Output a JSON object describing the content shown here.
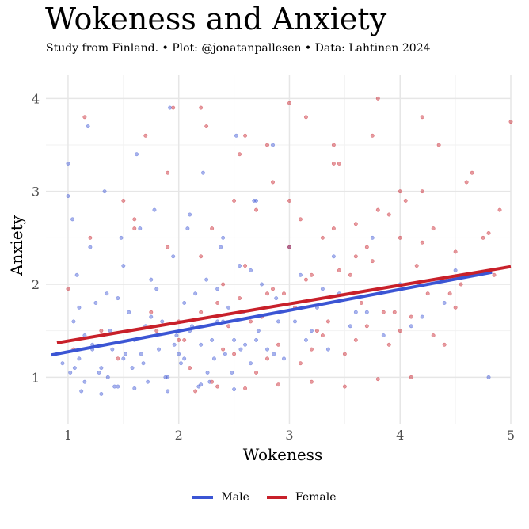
{
  "chart_data": {
    "type": "scatter",
    "title": "Wokeness and Anxiety",
    "subtitle": "Study from Finland. • Plot: @jonatanpallesen • Data: Lahtinen 2024",
    "xlabel": "Wokeness",
    "ylabel": "Anxiety",
    "xlim": [
      0.8,
      5.0
    ],
    "ylim": [
      0.5,
      4.25
    ],
    "xticks": [
      "1",
      "2",
      "3",
      "4",
      "5"
    ],
    "yticks": [
      "1",
      "2",
      "3",
      "4"
    ],
    "grid": true,
    "legend_position": "bottom",
    "series": [
      {
        "name": "Male",
        "color": "#3b55d4",
        "trend": {
          "x": [
            0.85,
            4.83
          ],
          "y": [
            1.24,
            2.13
          ]
        },
        "x": [
          1.02,
          1.05,
          1.1,
          1.15,
          1.22,
          1.3,
          1.38,
          1.45,
          1.52,
          1.6,
          1.68,
          1.75,
          1.82,
          1.9,
          1.98,
          2.05,
          2.12,
          2.2,
          2.28,
          2.35,
          2.42,
          2.5,
          2.58,
          2.65,
          2.72,
          2.8,
          2.88,
          2.95,
          3.05,
          3.15,
          3.25,
          3.35,
          3.45,
          3.55,
          3.7,
          3.85,
          4.0,
          4.2,
          4.4,
          4.8,
          1.08,
          1.2,
          1.35,
          1.5,
          1.65,
          1.8,
          1.95,
          2.1,
          2.25,
          2.4,
          2.55,
          2.7,
          1.12,
          1.28,
          1.42,
          1.58,
          1.72,
          1.88,
          2.02,
          2.18,
          2.32,
          2.48,
          1.0,
          1.04,
          1.18,
          1.33,
          1.48,
          1.62,
          1.78,
          1.92,
          2.08,
          2.22,
          2.38,
          2.52,
          2.68,
          2.85,
          1.25,
          1.55,
          1.85,
          2.15,
          2.45,
          2.75,
          3.1,
          3.4,
          0.95,
          1.0,
          1.15,
          1.4,
          1.7,
          2.0,
          2.3,
          2.6,
          2.9,
          3.2,
          3.6,
          4.1,
          1.3,
          1.6,
          1.9,
          2.2,
          2.5,
          1.1,
          1.45,
          1.75,
          2.05,
          2.35,
          2.65,
          3.0,
          1.22,
          1.5,
          1.8,
          2.1,
          2.4,
          2.7,
          1.06,
          1.36,
          1.66,
          1.96,
          2.26,
          2.56,
          2.86,
          3.3,
          3.75,
          4.5
        ],
        "y": [
          1.05,
          1.6,
          1.2,
          0.95,
          1.35,
          1.1,
          1.5,
          0.9,
          1.25,
          1.4,
          1.15,
          1.65,
          1.3,
          1.0,
          1.45,
          1.2,
          1.55,
          1.35,
          0.95,
          1.6,
          1.25,
          1.4,
          1.7,
          1.15,
          1.5,
          1.3,
          1.85,
          1.2,
          1.6,
          1.4,
          1.75,
          1.3,
          1.9,
          1.55,
          1.7,
          1.45,
          2.0,
          1.65,
          1.8,
          1.0,
          2.1,
          2.4,
          1.9,
          2.2,
          2.6,
          1.95,
          2.3,
          2.75,
          2.05,
          2.5,
          2.2,
          2.9,
          0.85,
          1.05,
          0.9,
          1.1,
          0.95,
          1.0,
          1.15,
          0.9,
          1.2,
          1.05,
          3.3,
          2.7,
          3.7,
          3.0,
          2.5,
          3.4,
          2.8,
          3.9,
          2.6,
          3.2,
          2.4,
          3.6,
          2.9,
          3.5,
          1.8,
          1.7,
          1.6,
          1.9,
          1.75,
          2.0,
          2.1,
          2.3,
          1.15,
          2.95,
          1.45,
          1.3,
          1.55,
          1.25,
          1.4,
          1.35,
          1.6,
          1.5,
          1.7,
          1.55,
          0.82,
          0.88,
          0.85,
          0.92,
          0.87,
          1.75,
          1.85,
          2.05,
          1.8,
          1.95,
          2.15,
          2.4,
          1.3,
          1.2,
          1.45,
          1.5,
          1.6,
          1.4,
          1.1,
          1.0,
          1.25,
          1.35,
          1.05,
          1.3,
          1.25,
          1.95,
          2.5,
          2.15
        ]
      },
      {
        "name": "Female",
        "color": "#c8202a",
        "trend": {
          "x": [
            0.9,
            5.0
          ],
          "y": [
            1.37,
            2.19
          ]
        },
        "x": [
          1.05,
          1.15,
          1.3,
          1.45,
          1.6,
          1.75,
          1.9,
          2.05,
          2.2,
          2.35,
          2.5,
          2.65,
          2.8,
          2.95,
          3.1,
          3.25,
          3.4,
          3.55,
          3.7,
          3.85,
          4.0,
          4.15,
          4.3,
          4.45,
          4.6,
          4.75,
          4.9,
          5.0,
          2.1,
          2.3,
          2.5,
          2.7,
          2.9,
          3.1,
          3.3,
          3.5,
          3.7,
          3.9,
          4.1,
          4.3,
          4.5,
          2.4,
          2.6,
          2.8,
          3.0,
          3.2,
          3.4,
          3.6,
          3.8,
          4.0,
          4.2,
          1.8,
          2.0,
          2.2,
          2.45,
          2.75,
          3.05,
          3.35,
          3.65,
          3.95,
          4.25,
          4.55,
          4.85,
          1.0,
          1.2,
          1.5,
          1.7,
          1.95,
          2.25,
          2.55,
          2.85,
          3.15,
          3.45,
          3.75,
          4.05,
          4.35,
          4.65,
          2.15,
          2.35,
          2.6,
          2.9,
          3.2,
          3.5,
          3.8,
          4.1,
          2.0,
          2.4,
          2.8,
          3.2,
          3.6,
          4.0,
          4.4,
          1.6,
          1.9,
          2.3,
          2.7,
          3.0,
          3.3,
          3.6,
          3.9,
          4.2,
          4.5,
          4.8,
          2.55,
          2.85,
          3.15,
          3.45,
          3.75,
          2.2,
          2.6,
          3.0,
          3.4,
          3.8,
          4.2
        ],
        "y": [
          1.3,
          3.8,
          1.5,
          1.2,
          2.6,
          1.7,
          3.2,
          1.4,
          2.3,
          1.8,
          2.9,
          1.6,
          3.5,
          1.9,
          2.7,
          1.5,
          3.3,
          2.1,
          2.4,
          1.7,
          3.0,
          2.2,
          2.6,
          1.9,
          3.1,
          2.5,
          2.8,
          3.75,
          1.1,
          0.95,
          1.25,
          1.05,
          1.35,
          1.15,
          1.45,
          1.25,
          1.55,
          1.35,
          1.65,
          1.45,
          1.75,
          2.0,
          2.2,
          1.9,
          2.4,
          2.1,
          2.6,
          2.3,
          2.8,
          2.5,
          3.0,
          1.5,
          1.6,
          1.7,
          1.55,
          1.65,
          1.75,
          1.6,
          1.8,
          1.7,
          1.9,
          2.0,
          2.1,
          1.95,
          2.5,
          2.9,
          3.6,
          3.9,
          3.7,
          3.4,
          3.1,
          3.8,
          3.3,
          3.6,
          2.9,
          3.5,
          3.2,
          0.85,
          0.9,
          0.88,
          0.92,
          0.95,
          0.9,
          0.98,
          1.0,
          1.4,
          1.3,
          1.2,
          1.3,
          1.4,
          1.5,
          1.35,
          2.7,
          2.4,
          2.6,
          2.8,
          2.9,
          2.5,
          2.65,
          2.75,
          2.45,
          2.35,
          2.55,
          1.85,
          1.95,
          2.05,
          2.15,
          2.25,
          3.9,
          3.6,
          3.95,
          3.5,
          4.0,
          3.8
        ]
      }
    ]
  }
}
